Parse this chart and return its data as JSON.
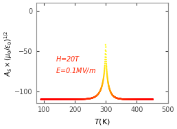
{
  "xlabel": "T(K)",
  "ylabel": "$A_S\\times(\\mu_0/\\varepsilon_0)^{1/2}$",
  "xlim": [
    75,
    500
  ],
  "ylim": [
    -115,
    10
  ],
  "yticks": [
    0,
    -50,
    -100
  ],
  "xticks": [
    100,
    200,
    300,
    400,
    500
  ],
  "T_transition": 299.5,
  "y_min": -110,
  "T_left_start": 90,
  "T_right_end": 452,
  "annotation_text": "$H$=20T\n$E$=0.1MV/m",
  "annotation_color": "#ff2200",
  "figsize": [
    2.58,
    1.89
  ],
  "dpi": 100,
  "background_color": "#ffffff",
  "color_red": [
    1.0,
    0.0,
    0.0
  ],
  "color_yellow": [
    1.0,
    1.0,
    0.0
  ]
}
